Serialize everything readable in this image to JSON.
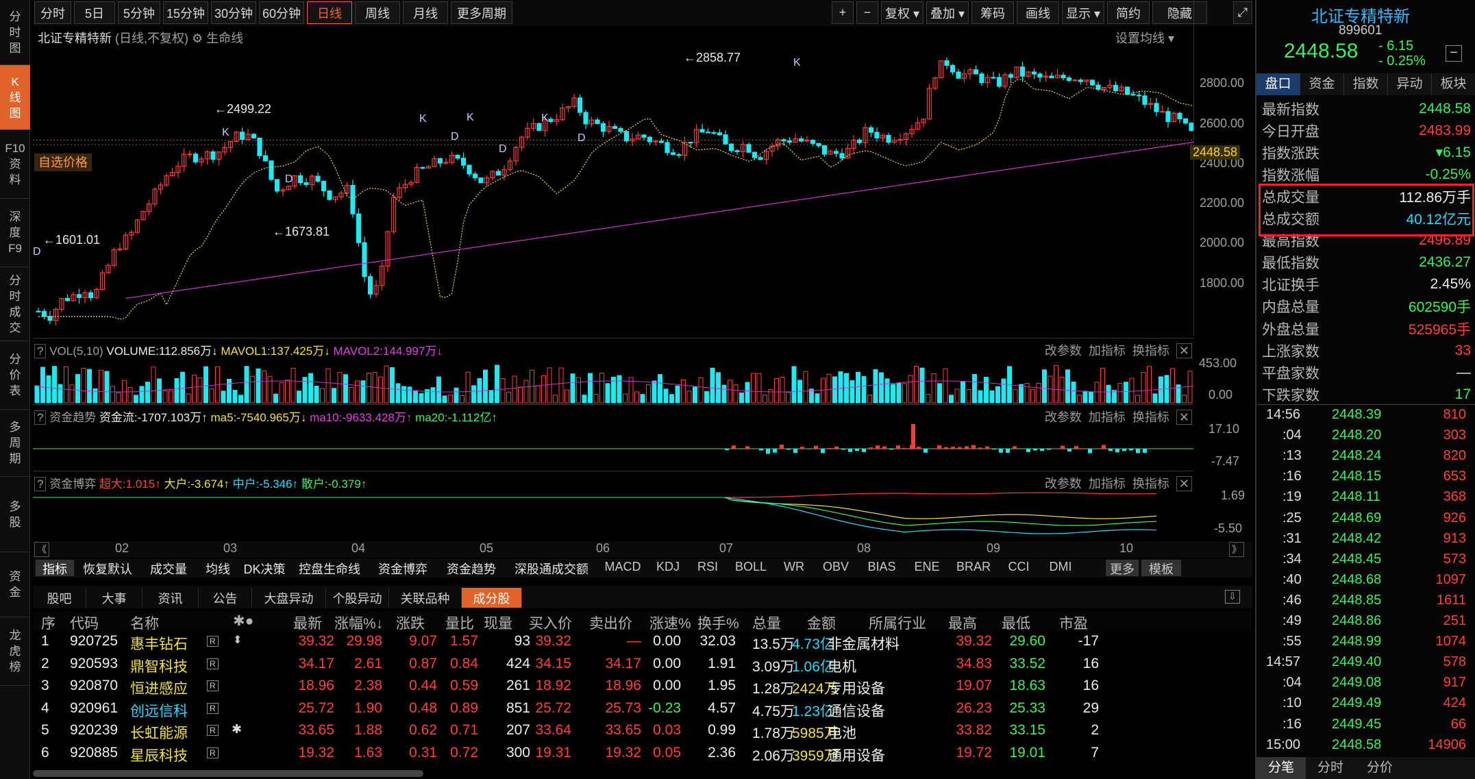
{
  "left_nav": [
    {
      "label": "分\n时\n图"
    },
    {
      "label": "K\n线\n图"
    },
    {
      "label": "F10\n资\n料"
    },
    {
      "label": "深\n度\nF9"
    },
    {
      "label": "分\n时\n成\n交"
    },
    {
      "label": "分\n价\n表"
    },
    {
      "label": "多\n周\n期"
    },
    {
      "label": "多\n股"
    },
    {
      "label": "资\n金"
    },
    {
      "label": "龙\n虎\n榜"
    }
  ],
  "toolbar": {
    "periods": [
      "分时",
      "5日",
      "5分钟",
      "15分钟",
      "30分钟",
      "60分钟",
      "日线",
      "周线",
      "月线",
      "更多周期"
    ],
    "active_period": "日线",
    "tools": [
      "+",
      "−",
      "复权",
      "叠加",
      "筹码",
      "画线",
      "显示",
      "简约",
      "隐藏"
    ]
  },
  "chart": {
    "title": "北证专精特新",
    "mode": "(日线,不复权)",
    "indicator": "生命线",
    "settings": "设置均线",
    "price_tag": "自选价格",
    "last_price": "2448.58",
    "y_ticks": [
      "2800.00",
      "2600.00",
      "2400.00",
      "2200.00",
      "2000.00",
      "1800.00"
    ],
    "high_label": "2858.77",
    "low_label": "1601.01",
    "mid_high_label": "2499.22",
    "mid_low_label": "1673.81",
    "x_ticks": [
      "02",
      "03",
      "04",
      "05",
      "06",
      "07",
      "08",
      "09",
      "10"
    ],
    "marks": {
      "k": "K",
      "d": "D"
    }
  },
  "chart_data": {
    "type": "candlestick",
    "title": "北证专精特新",
    "y_ticks": [
      2800,
      2600,
      2400,
      2200,
      2000,
      1800
    ],
    "high": 2858.77,
    "low": 1601.01,
    "last": 2448.58
  },
  "vol": {
    "q": "?",
    "name": "VOL(5,10)",
    "volume": "VOLUME:112.856万↓",
    "mavol1": "MAVOL1:137.425万↓",
    "mavol2": "MAVOL2:144.997万↓",
    "ymax": "453.00",
    "ymin": "0.00"
  },
  "fund_trend": {
    "q": "?",
    "name": "资金趋势",
    "flow": "资金流:-1707.103万↑",
    "ma5": "ma5:-7540.965万↓",
    "ma10": "ma10:-9633.428万↑",
    "ma20": "ma20:-1.112亿↑",
    "ymax": "17.10",
    "ymin": "-7.47"
  },
  "fund_game": {
    "q": "?",
    "name": "资金博弈",
    "super": "超大:1.015↑",
    "big": "大户:-3.674↑",
    "mid": "中户:-5.346↑",
    "small": "散户:-0.379↑",
    "ymax": "1.69",
    "ymin": "-5.50"
  },
  "panel_actions": {
    "params": "改参数",
    "add": "加指标",
    "swap": "换指标",
    "close": "✕"
  },
  "indicator_tabs": [
    "指标",
    "恢复默认",
    "成交量",
    "均线",
    "DK决策",
    "控盘生命线",
    "资金博弈",
    "资金趋势",
    "深股通成交额",
    "MACD",
    "KDJ",
    "RSI",
    "BOLL",
    "WR",
    "OBV",
    "BIAS",
    "ENE",
    "BRAR",
    "CCI",
    "DMI",
    "更多",
    "模板"
  ],
  "bottom_tabs": [
    "股吧",
    "大事",
    "资讯",
    "公告",
    "大盘异动",
    "个股异动",
    "关联品种",
    "成分股"
  ],
  "table": {
    "headers": [
      "序",
      "代码",
      "名称",
      "✱●",
      "最新",
      "涨幅%↓",
      "涨跌",
      "量比",
      "现量",
      "买入价",
      "卖出价",
      "涨速%",
      "换手%",
      "总量",
      "金额",
      "所属行业",
      "最高",
      "最低",
      "市盈"
    ],
    "rows": [
      [
        "1",
        "920725",
        "惠丰钻石",
        "39.32",
        "29.98",
        "9.07",
        "1.57",
        "93",
        "39.32",
        "—",
        "0.00",
        "32.03",
        "13.5万",
        "4.73亿",
        "非金属材料",
        "39.32",
        "29.60",
        "-17"
      ],
      [
        "2",
        "920593",
        "鼎智科技",
        "34.17",
        "2.61",
        "0.87",
        "0.84",
        "424",
        "34.15",
        "34.17",
        "0.00",
        "1.91",
        "3.09万",
        "1.06亿",
        "电机",
        "34.83",
        "33.52",
        "16"
      ],
      [
        "3",
        "920870",
        "恒进感应",
        "18.96",
        "2.38",
        "0.44",
        "0.59",
        "261",
        "18.92",
        "18.96",
        "0.00",
        "1.95",
        "1.28万",
        "2424万",
        "专用设备",
        "19.07",
        "18.63",
        "16"
      ],
      [
        "4",
        "920961",
        "创远信科",
        "25.72",
        "1.90",
        "0.48",
        "0.89",
        "851",
        "25.72",
        "25.73",
        "-0.23",
        "4.57",
        "4.75万",
        "1.23亿",
        "通信设备",
        "26.23",
        "25.33",
        "29"
      ],
      [
        "5",
        "920239",
        "长虹能源",
        "33.65",
        "1.88",
        "0.62",
        "0.71",
        "207",
        "33.64",
        "33.65",
        "0.03",
        "0.99",
        "1.78万",
        "5985万",
        "电池",
        "33.82",
        "33.15",
        "2"
      ],
      [
        "6",
        "920885",
        "星辰科技",
        "19.32",
        "1.63",
        "0.31",
        "0.72",
        "300",
        "19.31",
        "19.32",
        "0.05",
        "2.36",
        "2.06万",
        "3959万",
        "通用设备",
        "19.72",
        "19.01",
        "7"
      ]
    ]
  },
  "right": {
    "name": "北证专精特新",
    "code": "899601",
    "price": "2448.58",
    "change": "- 6.15",
    "pct": "- 0.25%",
    "tabs": [
      "盘口",
      "资金",
      "指数",
      "异动",
      "板块"
    ],
    "stats": [
      [
        "最新指数",
        "2448.58"
      ],
      [
        "今日开盘",
        "2483.99"
      ],
      [
        "指数涨跌",
        "▾6.15"
      ],
      [
        "指数涨幅",
        "-0.25%"
      ],
      [
        "总成交量",
        "112.86万手"
      ],
      [
        "总成交额",
        "40.12亿元"
      ],
      [
        "最高指数",
        "2496.89"
      ],
      [
        "最低指数",
        "2436.27"
      ],
      [
        "北证换手",
        "2.45%"
      ],
      [
        "内盘总量",
        "602590手"
      ],
      [
        "外盘总量",
        "525965手"
      ],
      [
        "上涨家数",
        "33"
      ],
      [
        "平盘家数",
        "—"
      ],
      [
        "下跌家数",
        "17"
      ]
    ],
    "ticks": [
      [
        "14:56",
        "2448.39",
        "810"
      ],
      [
        ":04",
        "2448.20",
        "303"
      ],
      [
        ":13",
        "2448.24",
        "820"
      ],
      [
        ":16",
        "2448.15",
        "653"
      ],
      [
        ":19",
        "2448.11",
        "368"
      ],
      [
        ":25",
        "2448.69",
        "926"
      ],
      [
        ":31",
        "2448.42",
        "913"
      ],
      [
        ":34",
        "2448.45",
        "573"
      ],
      [
        ":40",
        "2448.68",
        "1097"
      ],
      [
        ":46",
        "2448.85",
        "1611"
      ],
      [
        ":49",
        "2448.86",
        "251"
      ],
      [
        ":55",
        "2448.99",
        "1074"
      ],
      [
        "14:57",
        "2449.40",
        "578"
      ],
      [
        ":04",
        "2449.08",
        "917"
      ],
      [
        ":10",
        "2449.49",
        "424"
      ],
      [
        ":16",
        "2449.45",
        "66"
      ],
      [
        "15:00",
        "2448.58",
        "14906"
      ]
    ],
    "bottom_tabs": [
      "分笔",
      "分时",
      "分价"
    ]
  }
}
